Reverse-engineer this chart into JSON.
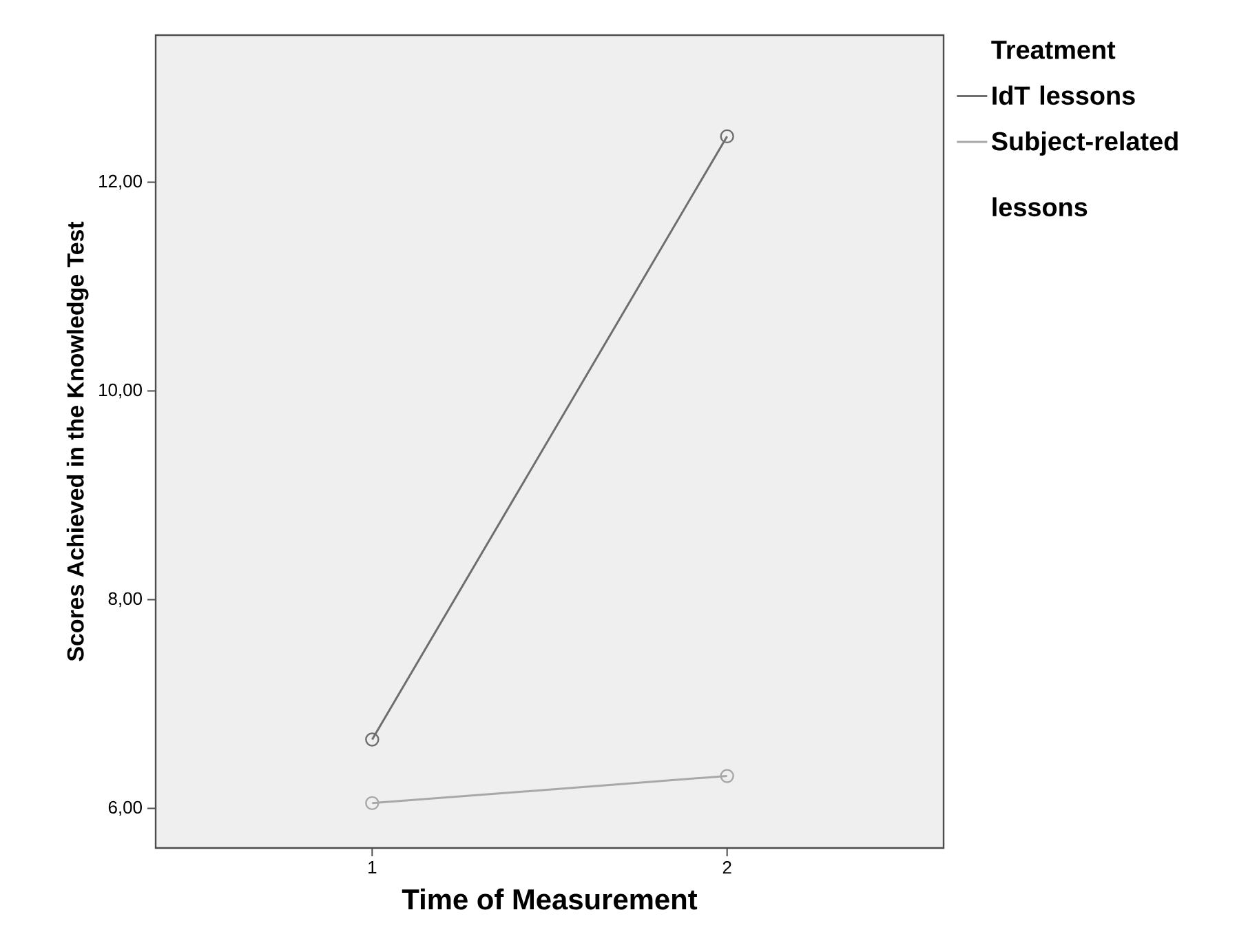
{
  "chart_data": {
    "type": "line",
    "xlabel": "Time of Measurement",
    "ylabel": "Scores Achieved in the Knowledge Test",
    "legend_title": "Treatment",
    "x": [
      1,
      2
    ],
    "series": [
      {
        "name": "IdT lessons",
        "color": "#6e6e6e",
        "values": [
          6.66,
          12.44
        ]
      },
      {
        "name": "Subject-related lessons",
        "color": "#a8a8a8",
        "values": [
          6.05,
          6.31
        ]
      }
    ],
    "xlim": [
      0.39,
      2.61
    ],
    "xticks": [
      1,
      2
    ],
    "ylim": [
      5.62,
      13.41
    ],
    "yticks": [
      {
        "value": 6,
        "label": "6,00"
      },
      {
        "value": 8,
        "label": "8,00"
      },
      {
        "value": 10,
        "label": "10,00"
      },
      {
        "value": 12,
        "label": "12,00"
      }
    ],
    "grid": false,
    "legend": "top right",
    "marker": "circle",
    "line_style": "solid"
  }
}
